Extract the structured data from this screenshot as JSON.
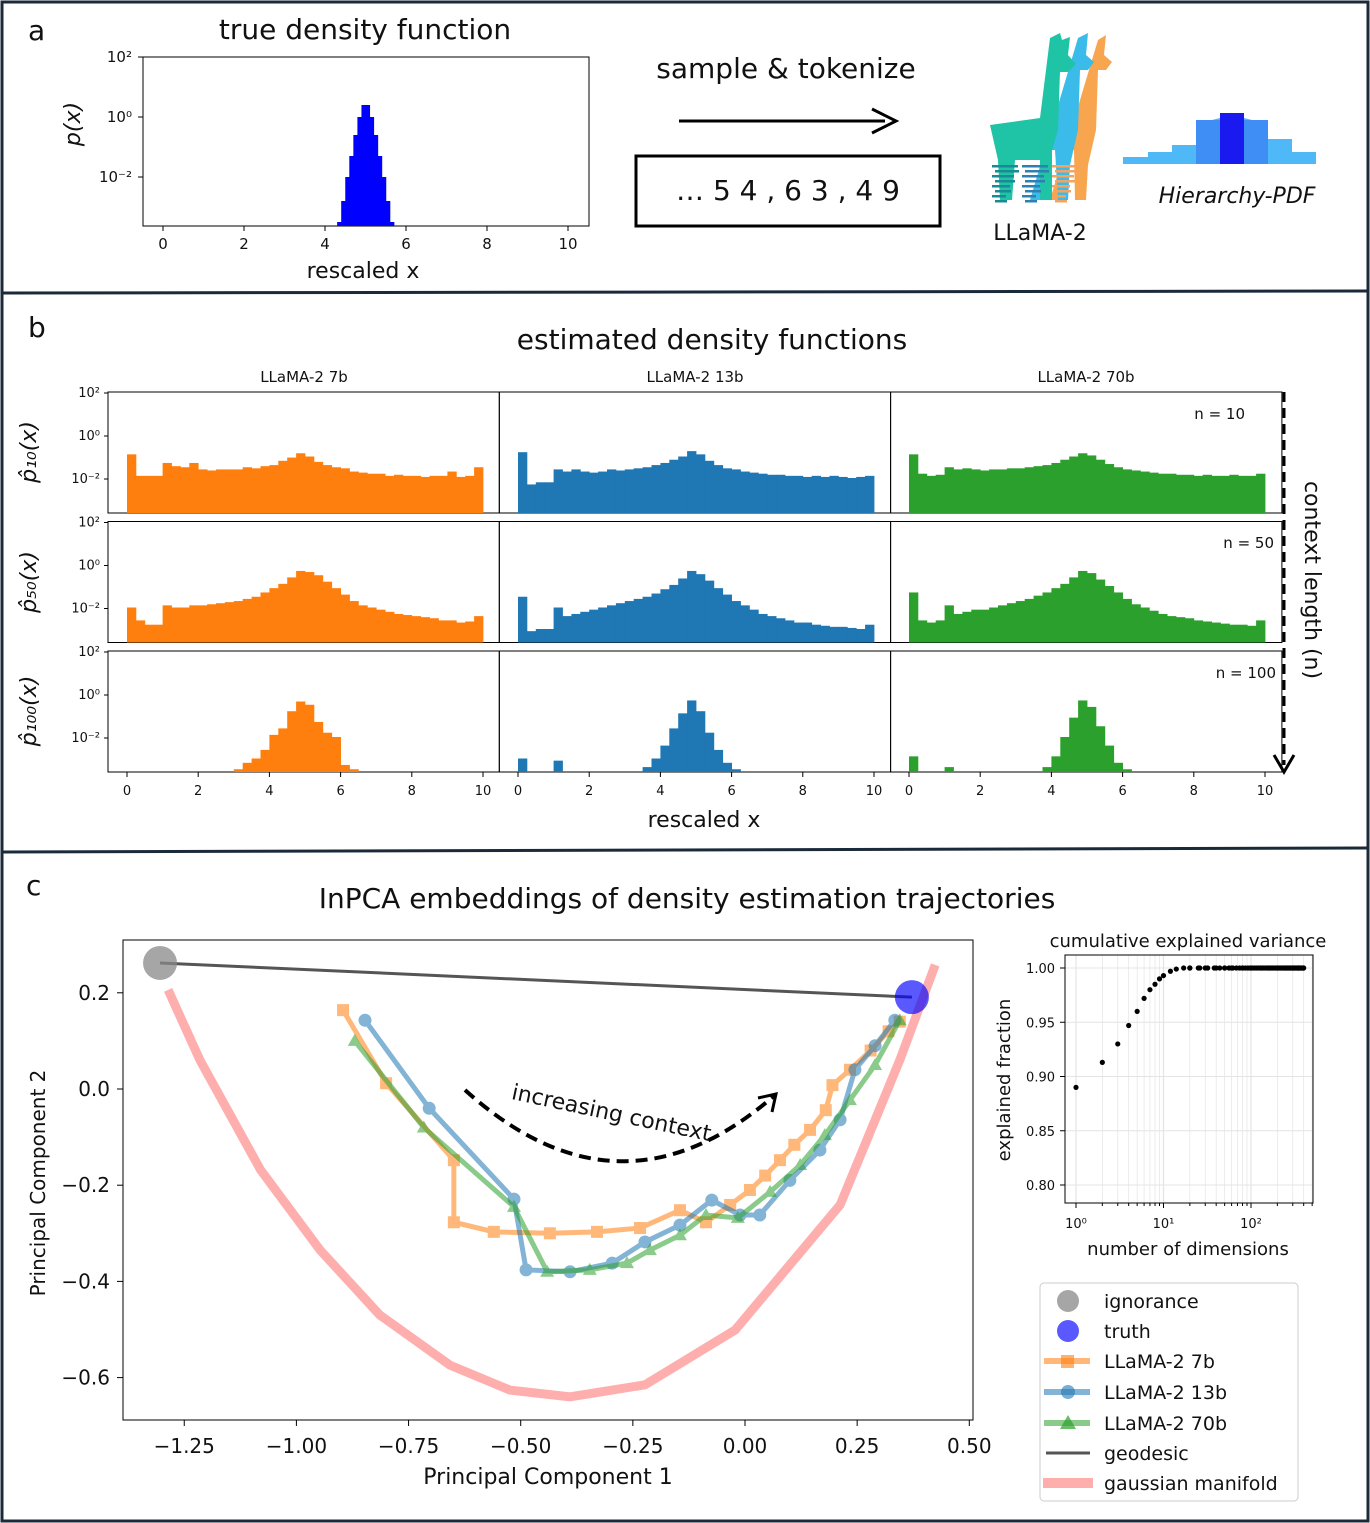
{
  "panel_labels": {
    "a": "a",
    "b": "b",
    "c": "c"
  },
  "colors": {
    "orange": "#ff7f0e",
    "blue": "#1f77b4",
    "green": "#2ca02c",
    "truth": "#0000ff",
    "ignorance": "#888888",
    "geodesic": "#555555",
    "manifold": "#ff9a9a",
    "border": "#1b2a3a"
  },
  "panel_a": {
    "pipeline_label": "sample & tokenize",
    "token_sequence": "… 5 4 , 6 3 , 4 9",
    "llama_label": "LLaMA-2",
    "hierarchy_label": "Hierarchy-PDF"
  },
  "chart_data": [
    {
      "type": "bar",
      "title": "true density function",
      "xlabel": "rescaled x",
      "ylabel": "p(x)",
      "yscale": "log",
      "xlim": [
        0,
        10
      ],
      "ylim_log10": [
        -3.65,
        2
      ],
      "xticks": [
        "0",
        "2",
        "4",
        "6",
        "8",
        "10"
      ],
      "yticks": [
        "10²",
        "10⁰",
        "10⁻²"
      ],
      "bin_start": 4.3,
      "bin_width": 0.1,
      "log10_density": [
        -3.5,
        -2.8,
        -2.0,
        -1.3,
        -0.6,
        0.0,
        0.4,
        0.4,
        0.0,
        -0.6,
        -1.3,
        -2.0,
        -2.8,
        -3.5
      ],
      "color": "#0000ff"
    },
    {
      "type": "bar",
      "title": "estimated density functions",
      "xlabel": "rescaled x",
      "yscale": "log",
      "xlim": [
        0,
        10
      ],
      "ylim_log10": [
        -3.58,
        2
      ],
      "xticks": [
        "0",
        "2",
        "4",
        "6",
        "8",
        "10"
      ],
      "yticks": [
        "10²",
        "10⁰",
        "10⁻²"
      ],
      "columns": [
        "LLaMA-2 7b",
        "LLaMA-2 13b",
        "LLaMA-2 70b"
      ],
      "rows": [
        {
          "ylabel": "p̂₁₀(x)",
          "n_label": "n = 10"
        },
        {
          "ylabel": "p̂₅₀(x)",
          "n_label": "n = 50"
        },
        {
          "ylabel": "p̂₁₀₀(x)",
          "n_label": "n = 100"
        }
      ],
      "context_label": "context length (n)",
      "bin_width": 0.25,
      "panels": [
        [
          [
            -0.9,
            -1.9,
            -1.9,
            -1.9,
            -1.3,
            -1.45,
            -1.5,
            -1.3,
            -1.6,
            -1.65,
            -1.6,
            -1.6,
            -1.6,
            -1.5,
            -1.55,
            -1.45,
            -1.4,
            -1.2,
            -1.05,
            -0.85,
            -1.0,
            -1.25,
            -1.4,
            -1.5,
            -1.55,
            -1.7,
            -1.75,
            -1.8,
            -1.8,
            -1.9,
            -1.85,
            -1.9,
            -1.9,
            -1.95,
            -1.9,
            -1.9,
            -1.7,
            -1.95,
            -1.9,
            -1.5
          ],
          [
            -0.8,
            -2.3,
            -2.2,
            -2.2,
            -1.6,
            -1.7,
            -1.6,
            -1.7,
            -1.75,
            -1.7,
            -1.6,
            -1.65,
            -1.6,
            -1.55,
            -1.5,
            -1.4,
            -1.3,
            -1.15,
            -1.0,
            -0.75,
            -0.9,
            -1.2,
            -1.4,
            -1.55,
            -1.6,
            -1.7,
            -1.75,
            -1.8,
            -1.85,
            -1.85,
            -1.9,
            -1.9,
            -1.95,
            -1.9,
            -1.95,
            -1.9,
            -1.95,
            -2.0,
            -1.95,
            -1.9
          ],
          [
            -0.9,
            -1.8,
            -1.9,
            -1.85,
            -1.5,
            -1.6,
            -1.55,
            -1.6,
            -1.65,
            -1.6,
            -1.6,
            -1.55,
            -1.55,
            -1.5,
            -1.45,
            -1.4,
            -1.3,
            -1.15,
            -1.0,
            -0.85,
            -0.95,
            -1.15,
            -1.35,
            -1.5,
            -1.6,
            -1.65,
            -1.7,
            -1.75,
            -1.8,
            -1.8,
            -1.85,
            -1.85,
            -1.9,
            -1.85,
            -1.9,
            -1.9,
            -1.85,
            -1.9,
            -1.9,
            -1.8
          ]
        ],
        [
          [
            -2.0,
            -2.6,
            -2.8,
            -2.8,
            -1.9,
            -2.0,
            -2.0,
            -1.9,
            -1.9,
            -1.85,
            -1.8,
            -1.75,
            -1.7,
            -1.6,
            -1.5,
            -1.3,
            -1.1,
            -0.9,
            -0.6,
            -0.3,
            -0.35,
            -0.5,
            -0.8,
            -1.1,
            -1.4,
            -1.7,
            -1.9,
            -2.0,
            -2.1,
            -2.2,
            -2.3,
            -2.35,
            -2.4,
            -2.45,
            -2.5,
            -2.6,
            -2.6,
            -2.7,
            -2.65,
            -2.4
          ],
          [
            -1.5,
            -3.1,
            -3.0,
            -3.0,
            -2.0,
            -2.4,
            -2.3,
            -2.2,
            -2.1,
            -2.0,
            -1.9,
            -1.8,
            -1.7,
            -1.6,
            -1.5,
            -1.35,
            -1.15,
            -0.95,
            -0.65,
            -0.3,
            -0.45,
            -0.75,
            -1.1,
            -1.4,
            -1.7,
            -1.9,
            -2.1,
            -2.3,
            -2.4,
            -2.5,
            -2.6,
            -2.7,
            -2.7,
            -2.8,
            -2.85,
            -2.9,
            -2.9,
            -2.95,
            -3.0,
            -2.8
          ],
          [
            -1.3,
            -2.6,
            -2.7,
            -2.6,
            -1.9,
            -2.3,
            -2.2,
            -2.1,
            -2.1,
            -2.0,
            -1.9,
            -1.8,
            -1.7,
            -1.6,
            -1.45,
            -1.3,
            -1.1,
            -0.9,
            -0.6,
            -0.3,
            -0.4,
            -0.7,
            -1.0,
            -1.3,
            -1.6,
            -1.85,
            -2.0,
            -2.15,
            -2.3,
            -2.4,
            -2.45,
            -2.5,
            -2.6,
            -2.65,
            -2.7,
            -2.75,
            -2.8,
            -2.8,
            -2.85,
            -2.6
          ]
        ],
        [
          [
            null,
            null,
            null,
            null,
            null,
            null,
            null,
            null,
            null,
            null,
            null,
            null,
            -3.5,
            -3.2,
            -3.0,
            -2.6,
            -1.9,
            -1.6,
            -0.8,
            -0.35,
            -0.5,
            -1.3,
            -1.8,
            -2.0,
            -3.3,
            -3.5,
            null,
            null,
            null,
            null,
            null,
            null,
            null,
            null,
            null,
            null,
            null,
            null,
            null,
            null
          ],
          [
            -3.0,
            null,
            null,
            null,
            -3.1,
            null,
            null,
            null,
            null,
            null,
            null,
            null,
            null,
            null,
            -3.4,
            -3.0,
            -2.4,
            -1.6,
            -0.9,
            -0.3,
            -0.8,
            -1.8,
            -2.6,
            -3.2,
            -3.5,
            null,
            null,
            null,
            null,
            null,
            null,
            null,
            null,
            null,
            null,
            null,
            null,
            null,
            null,
            null
          ],
          [
            -2.9,
            null,
            null,
            null,
            -3.4,
            null,
            null,
            null,
            null,
            null,
            null,
            null,
            null,
            null,
            null,
            -3.4,
            -2.9,
            -2.0,
            -1.1,
            -0.3,
            -0.6,
            -1.5,
            -2.4,
            -3.2,
            -3.5,
            null,
            null,
            null,
            null,
            null,
            null,
            null,
            null,
            null,
            null,
            null,
            null,
            null,
            null,
            null
          ]
        ]
      ]
    },
    {
      "type": "line",
      "title": "InPCA embeddings of density estimation trajectories",
      "xlabel": "Principal Component 1",
      "ylabel": "Principal Component 2",
      "xlim": [
        -1.39,
        0.52
      ],
      "ylim": [
        -0.69,
        0.31
      ],
      "xticks": [
        "−1.25",
        "−1.00",
        "−0.75",
        "−0.50",
        "−0.25",
        "0.00",
        "0.25",
        "0.50"
      ],
      "yticks": [
        "−0.6",
        "−0.4",
        "−0.2",
        "0.0",
        "0.2"
      ],
      "annotation": "increasing context",
      "legend_position": "bottom-right outside",
      "legend": [
        "ignorance",
        "truth",
        "LLaMA-2 7b",
        "LLaMA-2 13b",
        "LLaMA-2 70b",
        "geodesic",
        "gaussian manifold"
      ],
      "ignorance": [
        -1.304,
        0.262
      ],
      "truth": [
        0.372,
        0.191
      ],
      "series": [
        {
          "name": "LLaMA-2 7b",
          "marker": "square",
          "color": "#ff7f0e",
          "x": [
            -0.896,
            -0.8,
            -0.649,
            -0.649,
            -0.56,
            -0.435,
            -0.33,
            -0.234,
            -0.145,
            -0.087,
            -0.033,
            0.011,
            0.045,
            0.078,
            0.11,
            0.145,
            0.18,
            0.195,
            0.234,
            0.28,
            0.32,
            0.345
          ],
          "y": [
            0.164,
            0.012,
            -0.148,
            -0.277,
            -0.297,
            -0.3,
            -0.297,
            -0.289,
            -0.252,
            -0.277,
            -0.241,
            -0.21,
            -0.18,
            -0.148,
            -0.116,
            -0.085,
            -0.044,
            0.008,
            0.04,
            0.08,
            0.12,
            0.14
          ]
        },
        {
          "name": "LLaMA-2 13b",
          "marker": "circle",
          "color": "#1f77b4",
          "x": [
            -0.847,
            -0.704,
            -0.515,
            -0.488,
            -0.39,
            -0.296,
            -0.223,
            -0.145,
            -0.074,
            -0.011,
            0.033,
            0.1,
            0.167,
            0.212,
            0.245,
            0.29,
            0.334
          ],
          "y": [
            0.143,
            -0.04,
            -0.229,
            -0.376,
            -0.38,
            -0.362,
            -0.318,
            -0.283,
            -0.231,
            -0.262,
            -0.262,
            -0.19,
            -0.127,
            -0.064,
            0.04,
            0.09,
            0.143
          ]
        },
        {
          "name": "LLaMA-2 70b",
          "marker": "triangle",
          "color": "#2ca02c",
          "x": [
            -0.87,
            -0.716,
            -0.515,
            -0.441,
            -0.346,
            -0.263,
            -0.212,
            -0.145,
            -0.087,
            -0.016,
            0.056,
            0.123,
            0.178,
            0.234,
            0.29,
            0.345
          ],
          "y": [
            0.1,
            -0.08,
            -0.245,
            -0.38,
            -0.376,
            -0.362,
            -0.335,
            -0.304,
            -0.262,
            -0.268,
            -0.214,
            -0.158,
            -0.096,
            -0.023,
            0.05,
            0.143
          ]
        },
        {
          "name": "gaussian manifold",
          "marker": "none",
          "color": "#ff9a9a",
          "x": [
            -1.286,
            -1.215,
            -1.08,
            -0.947,
            -0.814,
            -0.658,
            -0.524,
            -0.39,
            -0.223,
            -0.022,
            0.212,
            0.345,
            0.424
          ],
          "y": [
            0.206,
            0.06,
            -0.168,
            -0.335,
            -0.47,
            -0.574,
            -0.626,
            -0.64,
            -0.615,
            -0.501,
            -0.241,
            0.06,
            0.258
          ]
        }
      ]
    },
    {
      "type": "scatter",
      "title": "cumulative explained variance",
      "xlabel": "number of dimensions",
      "ylabel": "explained fraction",
      "xscale": "log",
      "xlim": [
        0.8,
        600
      ],
      "ylim": [
        0.77,
        1.012
      ],
      "grid": true,
      "xticks": [
        "10⁰",
        "10¹",
        "10²"
      ],
      "yticks": [
        "0.80",
        "0.85",
        "0.90",
        "0.95",
        "1.00"
      ],
      "x": [
        1,
        2,
        3,
        4,
        5,
        6,
        7,
        8,
        9,
        10,
        12,
        14,
        17,
        20,
        25,
        30,
        40,
        50,
        60,
        80,
        100,
        130,
        160,
        200,
        250,
        300,
        350,
        400
      ],
      "y": [
        0.89,
        0.913,
        0.93,
        0.947,
        0.96,
        0.972,
        0.98,
        0.985,
        0.99,
        0.993,
        0.997,
        0.999,
        1.0,
        1.0,
        1.0,
        1.0,
        1.0,
        1.0,
        1.0,
        1.0,
        1.0,
        1.0,
        1.0,
        1.0,
        1.0,
        1.0,
        1.0,
        1.0
      ]
    }
  ]
}
